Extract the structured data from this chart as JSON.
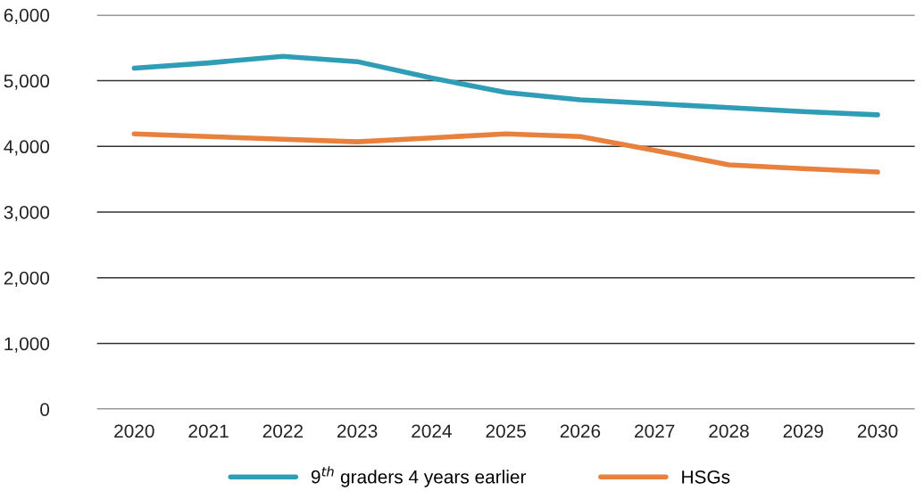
{
  "chart_data": {
    "type": "line",
    "categories": [
      "2020",
      "2021",
      "2022",
      "2023",
      "2024",
      "2025",
      "2026",
      "2027",
      "2028",
      "2029",
      "2030"
    ],
    "series": [
      {
        "name": "9$^{th}$ graders 4 years earlier",
        "color": "#2e9db5",
        "values": [
          5190,
          5270,
          5370,
          5290,
          5040,
          4820,
          4710,
          4650,
          4590,
          4530,
          4480
        ]
      },
      {
        "name": "HSGs",
        "color": "#e8803e",
        "values": [
          4190,
          4150,
          4110,
          4070,
          4130,
          4190,
          4150,
          3940,
          3720,
          3660,
          3610
        ]
      }
    ],
    "ylim": [
      0,
      6000
    ],
    "yticks": [
      {
        "value": 0,
        "label": "0"
      },
      {
        "value": 1000,
        "label": "1,000"
      },
      {
        "value": 2000,
        "label": "2,000"
      },
      {
        "value": 3000,
        "label": "3,000"
      },
      {
        "value": 4000,
        "label": "4,000"
      },
      {
        "value": 5000,
        "label": "5,000"
      },
      {
        "value": 6000,
        "label": "6,000"
      }
    ],
    "grid": "y",
    "legend": "bottom",
    "marker": "none",
    "line_style": "solid"
  }
}
